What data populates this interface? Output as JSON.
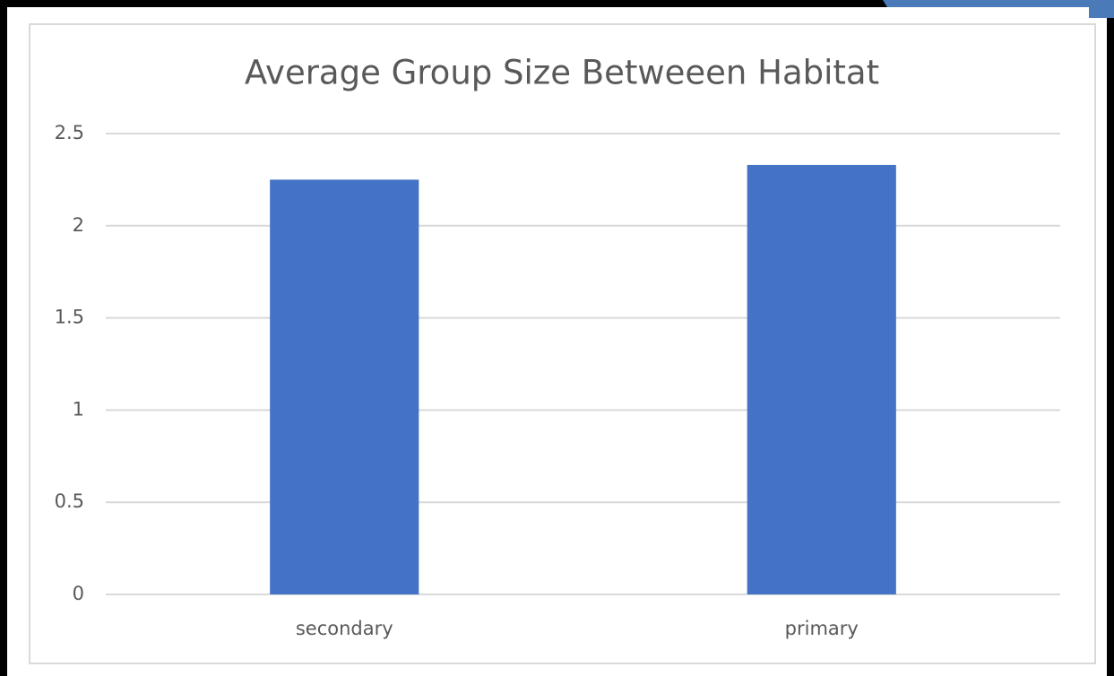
{
  "chart_data": {
    "type": "bar",
    "title": "Average Group Size Betweeen Habitat",
    "categories": [
      "secondary",
      "primary"
    ],
    "values": [
      2.25,
      2.33
    ],
    "color": "#4472c4",
    "ylim": [
      0,
      2.5
    ],
    "yticks": [
      0,
      0.5,
      1,
      1.5,
      2,
      2.5
    ],
    "grid": true
  }
}
